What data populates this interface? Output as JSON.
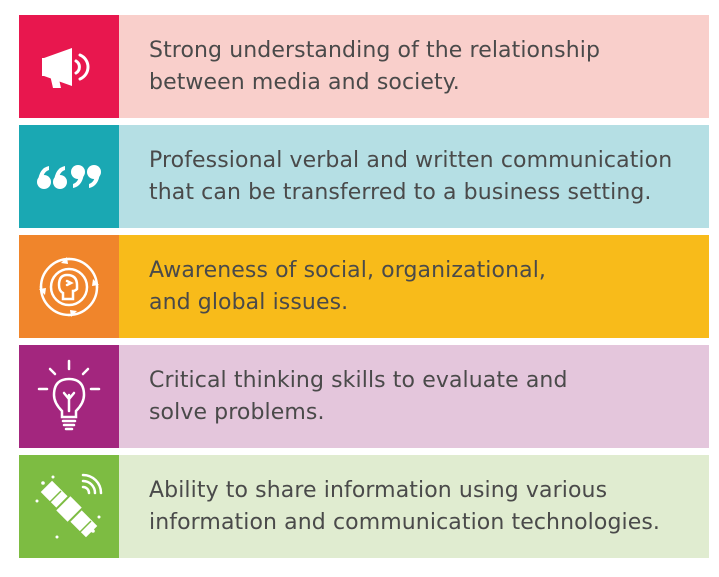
{
  "items": [
    {
      "icon": "megaphone-icon",
      "icon_color": "#e8174e",
      "text_bg": "#f9cfcb",
      "text": "Strong understanding of the relationship\nbetween media and society."
    },
    {
      "icon": "quotes-icon",
      "icon_color": "#1aa8b3",
      "text_bg": "#b5dfe4",
      "text": "Professional verbal and written communication\nthat can be transferred to a business setting."
    },
    {
      "icon": "head-cycle-icon",
      "icon_color": "#f0852b",
      "text_bg": "#f8bb1a",
      "text": "Awareness of social, organizational,\nand global issues."
    },
    {
      "icon": "lightbulb-icon",
      "icon_color": "#a3267e",
      "text_bg": "#e4c6dc",
      "text": "Critical thinking skills to evaluate and\nsolve problems."
    },
    {
      "icon": "satellite-icon",
      "icon_color": "#7dbc42",
      "text_bg": "#e0ecd0",
      "text": "Ability to share information using various\ninformation and communication technologies."
    }
  ]
}
